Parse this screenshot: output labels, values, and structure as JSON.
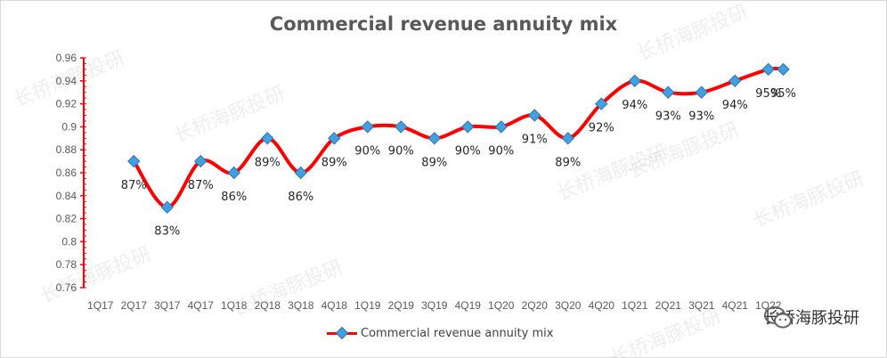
{
  "chart_data": {
    "type": "line",
    "title": "Commercial revenue annuity mix",
    "categories": [
      "1Q17",
      "2Q17",
      "3Q17",
      "4Q17",
      "1Q18",
      "2Q18",
      "3Q18",
      "4Q18",
      "1Q19",
      "2Q19",
      "3Q19",
      "4Q19",
      "1Q20",
      "2Q20",
      "3Q20",
      "4Q20",
      "1Q21",
      "2Q21",
      "3Q21",
      "4Q21",
      "1Q22"
    ],
    "series": [
      {
        "name": "Commercial revenue annuity mix",
        "x": [
          "2Q17",
          "3Q17",
          "4Q17",
          "1Q18",
          "2Q18",
          "3Q18",
          "4Q18",
          "1Q19",
          "2Q19",
          "3Q19",
          "4Q19",
          "1Q20",
          "2Q20",
          "3Q20",
          "4Q20",
          "1Q21",
          "2Q21",
          "3Q21",
          "4Q21",
          "1Q22",
          "1Q22-end"
        ],
        "values": [
          0.87,
          0.83,
          0.87,
          0.86,
          0.89,
          0.86,
          0.89,
          0.9,
          0.9,
          0.89,
          0.9,
          0.9,
          0.91,
          0.89,
          0.92,
          0.94,
          0.93,
          0.93,
          0.94,
          0.95,
          0.95
        ],
        "labels": [
          "87%",
          "83%",
          "87%",
          "86%",
          "89%",
          "86%",
          "89%",
          "90%",
          "90%",
          "89%",
          "90%",
          "90%",
          "91%",
          "89%",
          "92%",
          "94%",
          "93%",
          "93%",
          "94%",
          "95%",
          "95%"
        ],
        "color": "#ff0000",
        "marker_color": "#41a0e0"
      }
    ],
    "ylim": [
      0.76,
      0.96
    ],
    "yticks": [
      "0.96",
      "0.94",
      "0.92",
      "0.9",
      "0.88",
      "0.86",
      "0.84",
      "0.82",
      "0.8",
      "0.78",
      "0.76"
    ],
    "xlabel": "",
    "ylabel": "",
    "legend": "bottom",
    "grid": false,
    "axis_color": "#ff0000"
  },
  "title": "Commercial revenue annuity mix",
  "legend_label": "Commercial revenue annuity mix",
  "watermark": "长桥海豚投研",
  "brand_text": "长桥海豚投研"
}
